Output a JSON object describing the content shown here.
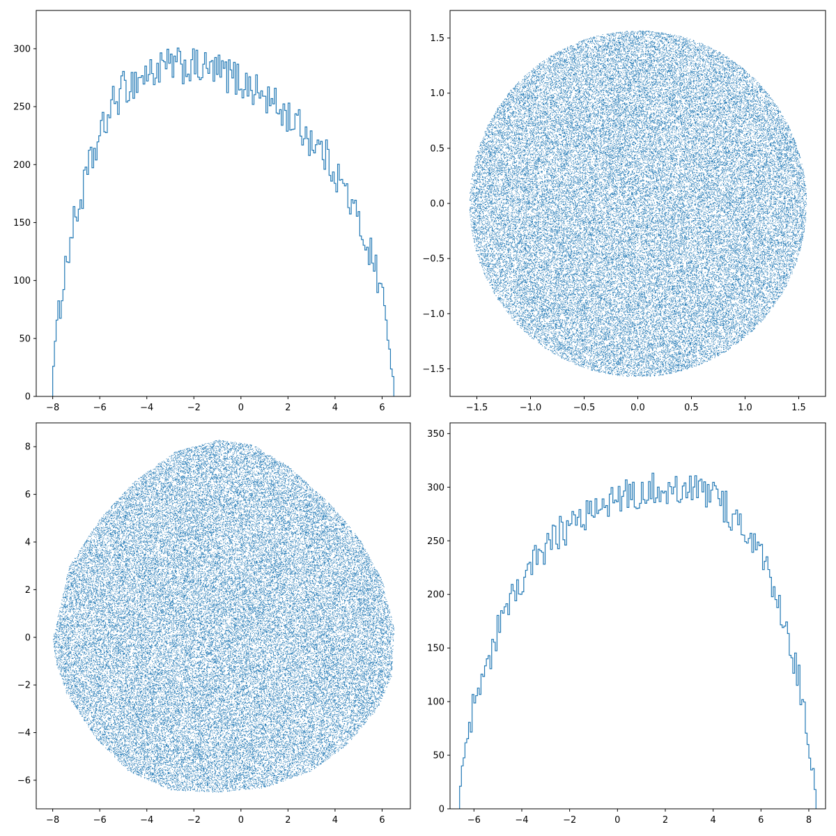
{
  "figure": {
    "layout": "2x2 grid",
    "marker_color": "#1f77b4"
  },
  "chart_data": [
    {
      "position": "top-left",
      "type": "histogram",
      "histtype": "step",
      "xlim": [
        -8.7,
        7.2
      ],
      "ylim": [
        0,
        333
      ],
      "xticks": [
        -8,
        -6,
        -4,
        -2,
        0,
        2,
        4,
        6
      ],
      "yticks": [
        0,
        50,
        100,
        150,
        200,
        250,
        300
      ],
      "bin_range": [
        -8.0,
        6.5
      ],
      "bin_count": 200,
      "envelope": {
        "x": [
          -8.0,
          -7.6,
          -7.2,
          -6.8,
          -6.4,
          -6.0,
          -5.5,
          -5.0,
          -4.5,
          -4.0,
          -3.5,
          -3.0,
          -2.5,
          -2.0,
          -1.5,
          -1.0,
          -0.5,
          0.0,
          0.5,
          1.0,
          1.5,
          2.0,
          2.5,
          3.0,
          3.5,
          4.0,
          4.5,
          5.0,
          5.5,
          6.0,
          6.2,
          6.35,
          6.5
        ],
        "values": [
          25,
          95,
          140,
          170,
          200,
          222,
          250,
          265,
          272,
          278,
          282,
          285,
          285,
          284,
          282,
          280,
          277,
          272,
          266,
          258,
          250,
          242,
          232,
          222,
          210,
          195,
          175,
          150,
          125,
          90,
          60,
          35,
          10
        ]
      },
      "noise_amplitude": 16
    },
    {
      "position": "top-right",
      "type": "scatter",
      "shape": "disk",
      "radius": 1.57,
      "center": [
        0,
        0
      ],
      "n_points": 60000,
      "xlim": [
        -1.75,
        1.75
      ],
      "ylim": [
        -1.75,
        1.75
      ],
      "xticks": [
        -1.5,
        -1.0,
        -0.5,
        0.0,
        0.5,
        1.0,
        1.5
      ],
      "yticks": [
        -1.5,
        -1.0,
        -0.5,
        0.0,
        0.5,
        1.0,
        1.5
      ],
      "xtick_labels": [
        "−1.5",
        "−1.0",
        "−0.5",
        "0.0",
        "0.5",
        "1.0",
        "1.5"
      ],
      "ytick_labels": [
        "−1.5",
        "−1.0",
        "−0.5",
        "0.0",
        "0.5",
        "1.0",
        "1.5"
      ]
    },
    {
      "position": "bottom-left",
      "type": "scatter",
      "shape": "rounded blob",
      "boundary": {
        "x": [
          -8.0,
          -7.3,
          -6.0,
          -4.5,
          -2.8,
          -1.0,
          0.5,
          2.0,
          3.8,
          5.0,
          6.0,
          6.5,
          6.4,
          5.8,
          4.5,
          3.0,
          1.0,
          -1.0,
          -3.0,
          -4.8,
          -6.2,
          -7.4,
          -7.9
        ],
        "y": [
          0.0,
          3.0,
          5.0,
          6.6,
          7.8,
          8.3,
          8.1,
          7.2,
          5.6,
          4.2,
          2.4,
          0.4,
          -1.6,
          -3.0,
          -4.5,
          -5.6,
          -6.3,
          -6.5,
          -6.4,
          -5.6,
          -4.2,
          -2.4,
          -1.0
        ]
      },
      "n_points": 60000,
      "xlim": [
        -8.7,
        7.2
      ],
      "ylim": [
        -7.2,
        9.0
      ],
      "xticks": [
        -8,
        -6,
        -4,
        -2,
        0,
        2,
        4,
        6
      ],
      "yticks": [
        -6,
        -4,
        -2,
        0,
        2,
        4,
        6,
        8
      ]
    },
    {
      "position": "bottom-right",
      "type": "histogram",
      "histtype": "step",
      "xlim": [
        -7.0,
        8.7
      ],
      "ylim": [
        0,
        360
      ],
      "xticks": [
        -6,
        -4,
        -2,
        0,
        2,
        4,
        6,
        8
      ],
      "yticks": [
        0,
        50,
        100,
        150,
        200,
        250,
        300,
        350
      ],
      "bin_range": [
        -6.6,
        8.3
      ],
      "bin_count": 200,
      "envelope": {
        "x": [
          -6.6,
          -6.3,
          -6.0,
          -5.5,
          -5.0,
          -4.5,
          -4.0,
          -3.5,
          -3.0,
          -2.5,
          -2.0,
          -1.5,
          -1.0,
          -0.5,
          0.0,
          0.5,
          1.0,
          1.5,
          2.0,
          2.5,
          3.0,
          3.5,
          4.0,
          4.5,
          5.0,
          5.5,
          6.0,
          6.5,
          7.0,
          7.5,
          7.9,
          8.1,
          8.3
        ],
        "values": [
          15,
          65,
          95,
          130,
          165,
          190,
          210,
          228,
          242,
          255,
          265,
          273,
          280,
          285,
          290,
          294,
          297,
          299,
          300,
          300,
          298,
          295,
          290,
          282,
          270,
          255,
          235,
          205,
          170,
          130,
          80,
          45,
          15
        ]
      },
      "noise_amplitude": 16
    }
  ]
}
